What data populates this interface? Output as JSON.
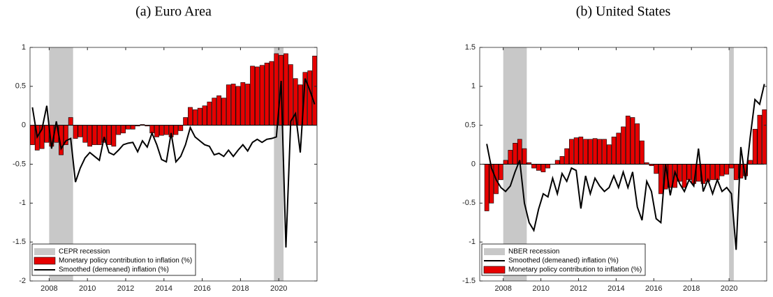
{
  "chart_data": [
    {
      "type": "bar",
      "title": "(a) Euro Area",
      "xlim": [
        2007,
        2022
      ],
      "xticks": [
        2008,
        2010,
        2012,
        2014,
        2016,
        2018,
        2020
      ],
      "ylim": [
        -2,
        1
      ],
      "yticks": [
        -2,
        -1.5,
        -1,
        -0.5,
        0,
        0.5,
        1
      ],
      "recession_label": "CEPR recession",
      "recession_color": "#c8c8c8",
      "recessions": [
        [
          2008,
          2009.25
        ],
        [
          2019.75,
          2020.25
        ]
      ],
      "x": [
        2007.125,
        2007.375,
        2007.625,
        2007.875,
        2008.125,
        2008.375,
        2008.625,
        2008.875,
        2009.125,
        2009.375,
        2009.625,
        2009.875,
        2010.125,
        2010.375,
        2010.625,
        2010.875,
        2011.125,
        2011.375,
        2011.625,
        2011.875,
        2012.125,
        2012.375,
        2012.625,
        2012.875,
        2013.125,
        2013.375,
        2013.625,
        2013.875,
        2014.125,
        2014.375,
        2014.625,
        2014.875,
        2015.125,
        2015.375,
        2015.625,
        2015.875,
        2016.125,
        2016.375,
        2016.625,
        2016.875,
        2017.125,
        2017.375,
        2017.625,
        2017.875,
        2018.125,
        2018.375,
        2018.625,
        2018.875,
        2019.125,
        2019.375,
        2019.625,
        2019.875,
        2020.125,
        2020.375,
        2020.625,
        2020.875,
        2021.125,
        2021.375,
        2021.625,
        2021.875
      ],
      "series": [
        {
          "name": "Monetary policy contribution to inflation (%)",
          "type": "bar",
          "color": "#e60000",
          "values": [
            -0.25,
            -0.32,
            -0.3,
            -0.22,
            -0.27,
            -0.22,
            -0.38,
            -0.25,
            0.1,
            -0.17,
            -0.15,
            -0.22,
            -0.27,
            -0.25,
            -0.25,
            -0.22,
            -0.25,
            -0.27,
            -0.12,
            -0.1,
            -0.05,
            -0.05,
            -0.01,
            0.01,
            -0.01,
            -0.1,
            -0.15,
            -0.13,
            -0.12,
            -0.15,
            -0.12,
            -0.07,
            0.1,
            0.23,
            0.2,
            0.22,
            0.25,
            0.3,
            0.35,
            0.38,
            0.35,
            0.52,
            0.53,
            0.5,
            0.55,
            0.53,
            0.76,
            0.75,
            0.77,
            0.8,
            0.82,
            0.92,
            0.9,
            0.92,
            0.78,
            0.6,
            0.52,
            0.68,
            0.7,
            0.89
          ]
        },
        {
          "name": "Smoothed (demeaned) inflation (%)",
          "type": "line",
          "color": "#000000",
          "values": [
            0.23,
            -0.15,
            -0.05,
            0.25,
            -0.3,
            0.05,
            -0.3,
            -0.2,
            -0.17,
            -0.73,
            -0.55,
            -0.42,
            -0.35,
            -0.4,
            -0.45,
            -0.15,
            -0.35,
            -0.38,
            -0.32,
            -0.25,
            -0.23,
            -0.22,
            -0.34,
            -0.2,
            -0.28,
            -0.1,
            -0.25,
            -0.44,
            -0.47,
            -0.1,
            -0.47,
            -0.4,
            -0.25,
            -0.03,
            -0.15,
            -0.2,
            -0.25,
            -0.27,
            -0.38,
            -0.36,
            -0.4,
            -0.32,
            -0.4,
            -0.32,
            -0.25,
            -0.33,
            -0.22,
            -0.18,
            -0.22,
            -0.18,
            -0.17,
            -0.15,
            0.57,
            -1.57,
            0.05,
            0.15,
            -0.35,
            0.6,
            0.45,
            0.27
          ]
        }
      ]
    },
    {
      "type": "bar",
      "title": "(b) United States",
      "xlim": [
        2006.75,
        2022
      ],
      "xticks": [
        2008,
        2010,
        2012,
        2014,
        2016,
        2018,
        2020
      ],
      "ylim": [
        -1.5,
        1.5
      ],
      "yticks": [
        -1.5,
        -1,
        -0.5,
        0,
        0.5,
        1,
        1.5
      ],
      "recession_label": "NBER recession",
      "recession_color": "#c8c8c8",
      "recessions": [
        [
          2008,
          2009.25
        ],
        [
          2020,
          2020.25
        ]
      ],
      "x": [
        2007.125,
        2007.375,
        2007.625,
        2007.875,
        2008.125,
        2008.375,
        2008.625,
        2008.875,
        2009.125,
        2009.375,
        2009.625,
        2009.875,
        2010.125,
        2010.375,
        2010.625,
        2010.875,
        2011.125,
        2011.375,
        2011.625,
        2011.875,
        2012.125,
        2012.375,
        2012.625,
        2012.875,
        2013.125,
        2013.375,
        2013.625,
        2013.875,
        2014.125,
        2014.375,
        2014.625,
        2014.875,
        2015.125,
        2015.375,
        2015.625,
        2015.875,
        2016.125,
        2016.375,
        2016.625,
        2016.875,
        2017.125,
        2017.375,
        2017.625,
        2017.875,
        2018.125,
        2018.375,
        2018.625,
        2018.875,
        2019.125,
        2019.375,
        2019.625,
        2019.875,
        2020.125,
        2020.375,
        2020.625,
        2020.875,
        2021.125,
        2021.375,
        2021.625,
        2021.875
      ],
      "series": [
        {
          "name": "Smoothed (demeaned) inflation (%)",
          "type": "line",
          "color": "#000000",
          "values": [
            0.26,
            -0.05,
            -0.2,
            -0.3,
            -0.35,
            -0.28,
            -0.1,
            0.05,
            -0.5,
            -0.75,
            -0.85,
            -0.58,
            -0.38,
            -0.42,
            -0.18,
            -0.38,
            -0.12,
            -0.22,
            -0.05,
            -0.08,
            -0.57,
            -0.15,
            -0.38,
            -0.18,
            -0.28,
            -0.35,
            -0.3,
            -0.15,
            -0.3,
            -0.1,
            -0.3,
            -0.1,
            -0.55,
            -0.72,
            -0.22,
            -0.35,
            -0.7,
            -0.75,
            0.0,
            -0.4,
            -0.1,
            -0.25,
            -0.35,
            -0.2,
            -0.28,
            0.2,
            -0.35,
            -0.2,
            -0.38,
            -0.2,
            -0.35,
            -0.3,
            -0.38,
            -1.1,
            0.22,
            -0.2,
            0.35,
            0.83,
            0.77,
            1.03
          ]
        },
        {
          "name": "Monetary policy contribution to inflation (%)",
          "type": "bar",
          "color": "#e60000",
          "values": [
            -0.6,
            -0.5,
            -0.38,
            -0.2,
            0.05,
            0.18,
            0.27,
            0.32,
            0.2,
            0.02,
            -0.05,
            -0.08,
            -0.1,
            -0.05,
            0.0,
            0.05,
            0.1,
            0.2,
            0.32,
            0.34,
            0.35,
            0.32,
            0.32,
            0.33,
            0.32,
            0.32,
            0.25,
            0.35,
            0.4,
            0.48,
            0.62,
            0.6,
            0.52,
            0.3,
            0.02,
            -0.02,
            -0.12,
            -0.38,
            -0.32,
            -0.3,
            -0.3,
            -0.22,
            -0.3,
            -0.2,
            -0.25,
            -0.22,
            -0.25,
            -0.22,
            -0.2,
            -0.2,
            -0.15,
            -0.13,
            -0.05,
            -0.2,
            -0.18,
            -0.15,
            0.05,
            0.45,
            0.63,
            0.7
          ]
        }
      ]
    }
  ]
}
